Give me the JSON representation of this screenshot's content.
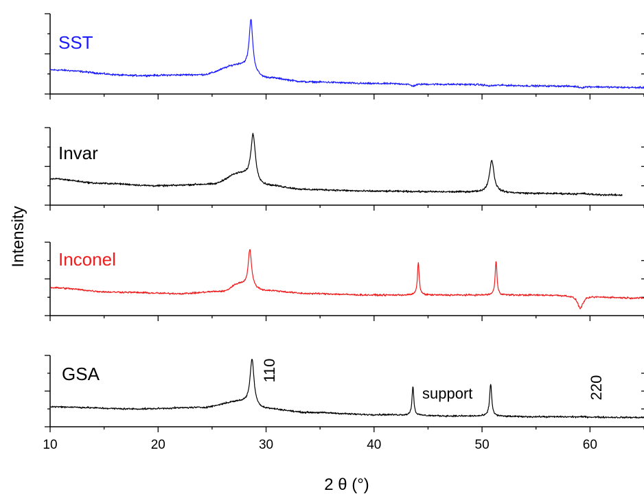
{
  "chart_data": {
    "type": "line",
    "title": "",
    "xlabel": "2 θ (°)",
    "ylabel": "Intensity",
    "xlim": [
      10,
      65
    ],
    "x_ticks": [
      10,
      20,
      30,
      40,
      50,
      60
    ],
    "x_tick_labels": [
      "10",
      "20",
      "30",
      "40",
      "50",
      "60"
    ],
    "grid": false,
    "layout": "four vertically stacked panels sharing the x axis",
    "series": [
      {
        "name": "SST",
        "color": "#1a1aff",
        "x_range": [
          10,
          65
        ],
        "baseline": [
          [
            10,
            0.3
          ],
          [
            18,
            0.23
          ],
          [
            24,
            0.24
          ],
          [
            27.5,
            0.36
          ],
          [
            30,
            0.2
          ],
          [
            34,
            0.15
          ],
          [
            40,
            0.13
          ],
          [
            48,
            0.12
          ],
          [
            56,
            0.1
          ],
          [
            65,
            0.08
          ]
        ],
        "peaks": [
          {
            "pos": 28.6,
            "height": 0.93,
            "width": 0.2
          },
          {
            "pos": 43.6,
            "height": 0.1,
            "width": 0.3
          },
          {
            "pos": 50.7,
            "height": 0.1,
            "width": 0.4
          },
          {
            "pos": 59.2,
            "height": 0.08,
            "width": 0.3
          }
        ]
      },
      {
        "name": "Invar",
        "color": "#000000",
        "x_range": [
          10,
          63
        ],
        "baseline": [
          [
            10,
            0.34
          ],
          [
            15,
            0.28
          ],
          [
            20,
            0.25
          ],
          [
            25,
            0.27
          ],
          [
            27.5,
            0.4
          ],
          [
            30,
            0.25
          ],
          [
            34,
            0.2
          ],
          [
            40,
            0.18
          ],
          [
            48,
            0.17
          ],
          [
            56,
            0.15
          ],
          [
            63,
            0.13
          ]
        ],
        "peaks": [
          {
            "pos": 28.8,
            "height": 0.92,
            "width": 0.25
          },
          {
            "pos": 50.9,
            "height": 0.58,
            "width": 0.25
          },
          {
            "pos": 59.4,
            "height": 0.15,
            "width": 0.3
          }
        ]
      },
      {
        "name": "Inconel",
        "color": "#ee1c1c",
        "x_range": [
          10,
          65
        ],
        "baseline": [
          [
            10,
            0.38
          ],
          [
            16,
            0.32
          ],
          [
            22,
            0.3
          ],
          [
            26,
            0.33
          ],
          [
            27.5,
            0.43
          ],
          [
            30,
            0.34
          ],
          [
            34,
            0.3
          ],
          [
            40,
            0.28
          ],
          [
            48,
            0.28
          ],
          [
            56,
            0.28
          ],
          [
            65,
            0.24
          ]
        ],
        "peaks": [
          {
            "pos": 28.5,
            "height": 0.91,
            "width": 0.18
          },
          {
            "pos": 44.1,
            "height": 0.72,
            "width": 0.1
          },
          {
            "pos": 51.3,
            "height": 0.75,
            "width": 0.1
          },
          {
            "pos": 59.1,
            "height": 0.1,
            "width": 0.3
          }
        ]
      },
      {
        "name": "GSA",
        "color": "#000000",
        "x_range": [
          10,
          65
        ],
        "baseline": [
          [
            10,
            0.28
          ],
          [
            18,
            0.25
          ],
          [
            24,
            0.27
          ],
          [
            27.5,
            0.35
          ],
          [
            30,
            0.25
          ],
          [
            34,
            0.2
          ],
          [
            40,
            0.17
          ],
          [
            48,
            0.15
          ],
          [
            56,
            0.14
          ],
          [
            65,
            0.13
          ]
        ],
        "peaks": [
          {
            "pos": 28.7,
            "height": 0.95,
            "width": 0.22
          },
          {
            "pos": 43.6,
            "height": 0.57,
            "width": 0.1
          },
          {
            "pos": 50.8,
            "height": 0.6,
            "width": 0.12
          },
          {
            "pos": 59.4,
            "height": 0.14,
            "width": 0.3
          }
        ]
      }
    ],
    "annotations": [
      {
        "text": "110",
        "panel": "GSA",
        "rotated": true
      },
      {
        "text": "support",
        "panel": "GSA",
        "rotated": false
      },
      {
        "text": "220",
        "panel": "GSA",
        "rotated": true
      }
    ]
  }
}
